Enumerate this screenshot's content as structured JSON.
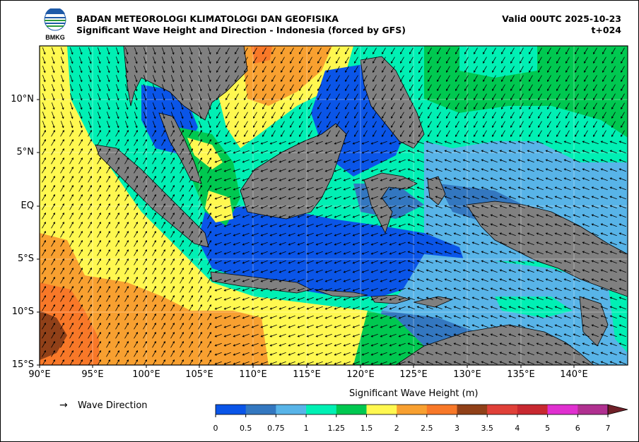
{
  "header": {
    "agency": "BADAN METEOROLOGI KLIMATOLOGI DAN GEOFISIKA",
    "product": "Significant Wave Height and Direction - Indonesia (forced by GFS)",
    "valid": "Valid 00UTC 2025-10-23",
    "step": "t+024",
    "logo_text": "BMKG"
  },
  "map": {
    "lat_labels": [
      "10°N",
      "5°N",
      "EQ",
      "5°S",
      "10°S",
      "15°S"
    ],
    "lon_labels": [
      "90°E",
      "95°E",
      "100°E",
      "105°E",
      "110°E",
      "115°E",
      "120°E",
      "125°E",
      "130°E",
      "135°E",
      "140°E"
    ],
    "land_color": "#808080",
    "grid": true
  },
  "colorbar": {
    "title": "Significant Wave Height (m)",
    "ticks": [
      "0",
      "0.5",
      "0.75",
      "1",
      "1.25",
      "1.5",
      "2",
      "2.5",
      "3",
      "3.5",
      "4",
      "5",
      "6",
      "7"
    ],
    "colors": [
      "#0a55e8",
      "#3377c0",
      "#58b4e8",
      "#00f0b4",
      "#00c850",
      "#fff850",
      "#f8a030",
      "#f87828",
      "#904018",
      "#e04038",
      "#c82830",
      "#e030d0",
      "#b03090",
      "#702028"
    ]
  },
  "legend": {
    "arrow": "→",
    "label": "Wave Direction"
  }
}
